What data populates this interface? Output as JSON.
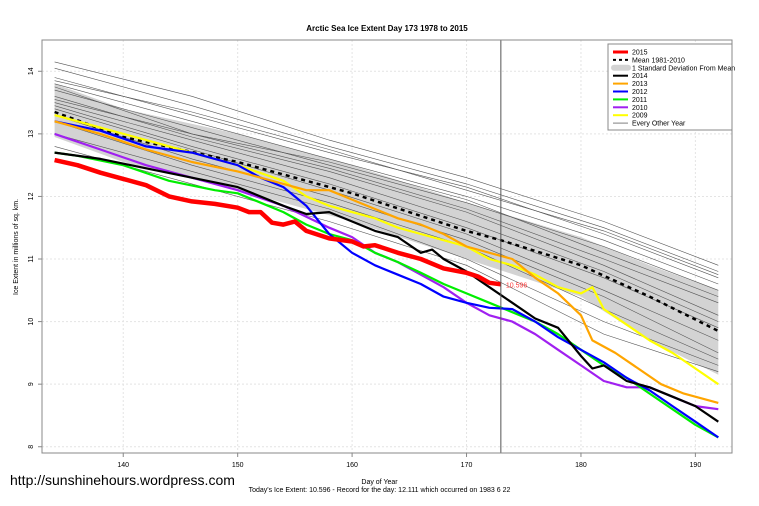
{
  "chart_data": {
    "type": "line",
    "title": "Arctic Sea Ice Extent Day 173 1978 to 2015",
    "xlabel": "Day of Year",
    "ylabel": "Ice Extent in millions of sq. km.",
    "subtitle": "Today's Ice Extent: 10.596  - Record for the day: 12.111 which occurred on 1983 6 22",
    "xlim": [
      132.9,
      193.2
    ],
    "ylim": [
      7.9,
      14.5
    ],
    "xticks": [
      140,
      150,
      160,
      170,
      180,
      190
    ],
    "yticks": [
      8,
      9,
      10,
      11,
      12,
      13,
      14
    ],
    "grid": true,
    "vline_day": 173,
    "current_label": "10.596",
    "legend_position": "top-right",
    "legend": [
      {
        "label": "2015",
        "color": "#ff0000",
        "style": "thick"
      },
      {
        "label": "Mean 1981-2010",
        "color": "#000000",
        "style": "dashed"
      },
      {
        "label": "1 Standard Deviation From Mean",
        "color": "#d3d3d3",
        "style": "band"
      },
      {
        "label": "2014",
        "color": "#000000",
        "style": "solid"
      },
      {
        "label": "2013",
        "color": "#ffa500",
        "style": "solid"
      },
      {
        "label": "2012",
        "color": "#0000ff",
        "style": "solid"
      },
      {
        "label": "2011",
        "color": "#00ee00",
        "style": "solid"
      },
      {
        "label": "2010",
        "color": "#a020f0",
        "style": "solid"
      },
      {
        "label": "2009",
        "color": "#ffff00",
        "style": "solid"
      },
      {
        "label": "Every Other Year",
        "color": "#808080",
        "style": "thin"
      }
    ],
    "mean": {
      "x": [
        134,
        140,
        150,
        160,
        170,
        173,
        180,
        186,
        192
      ],
      "y": [
        13.35,
        12.95,
        12.55,
        12.05,
        11.45,
        11.3,
        10.9,
        10.4,
        9.85
      ]
    },
    "sd_band": {
      "x": [
        134,
        140,
        150,
        160,
        170,
        180,
        186,
        192
      ],
      "upper": [
        13.8,
        13.4,
        13.0,
        12.5,
        11.9,
        11.35,
        10.9,
        10.5
      ],
      "lower": [
        12.95,
        12.55,
        12.1,
        11.6,
        11.0,
        10.4,
        9.7,
        9.15
      ]
    },
    "other_years": [
      {
        "x": [
          134,
          146,
          158,
          170,
          182,
          192
        ],
        "y": [
          14.15,
          13.6,
          12.9,
          12.3,
          11.6,
          10.9
        ]
      },
      {
        "x": [
          134,
          146,
          158,
          170,
          182,
          192
        ],
        "y": [
          14.05,
          13.45,
          12.8,
          12.2,
          11.5,
          10.8
        ]
      },
      {
        "x": [
          134,
          146,
          158,
          170,
          182,
          192
        ],
        "y": [
          13.9,
          13.3,
          12.7,
          12.15,
          11.4,
          10.7
        ]
      },
      {
        "x": [
          134,
          146,
          158,
          170,
          182,
          192
        ],
        "y": [
          13.8,
          13.2,
          12.6,
          12.0,
          11.3,
          10.6
        ]
      },
      {
        "x": [
          134,
          146,
          158,
          170,
          182,
          192
        ],
        "y": [
          13.7,
          13.1,
          12.5,
          11.9,
          11.2,
          10.5
        ]
      },
      {
        "x": [
          134,
          146,
          158,
          170,
          182,
          192
        ],
        "y": [
          13.75,
          13.0,
          12.45,
          11.8,
          11.0,
          10.3
        ]
      },
      {
        "x": [
          134,
          146,
          158,
          170,
          182,
          192
        ],
        "y": [
          13.6,
          12.95,
          12.4,
          11.75,
          10.9,
          10.1
        ]
      },
      {
        "x": [
          134,
          146,
          158,
          170,
          182,
          192
        ],
        "y": [
          13.5,
          12.9,
          12.3,
          11.6,
          10.8,
          10.0
        ]
      },
      {
        "x": [
          134,
          146,
          158,
          170,
          182,
          192
        ],
        "y": [
          13.45,
          12.8,
          12.2,
          11.5,
          10.7,
          9.9
        ]
      },
      {
        "x": [
          134,
          146,
          158,
          170,
          182,
          192
        ],
        "y": [
          13.4,
          12.75,
          12.1,
          11.4,
          10.5,
          9.7
        ]
      },
      {
        "x": [
          134,
          146,
          158,
          170,
          182,
          192
        ],
        "y": [
          13.3,
          12.6,
          12.0,
          11.3,
          10.4,
          9.5
        ]
      },
      {
        "x": [
          134,
          146,
          158,
          170,
          182,
          192
        ],
        "y": [
          13.2,
          12.5,
          11.9,
          11.2,
          10.2,
          9.4
        ]
      },
      {
        "x": [
          134,
          146,
          158,
          170,
          182,
          192
        ],
        "y": [
          13.0,
          12.4,
          11.8,
          11.0,
          10.0,
          9.3
        ]
      },
      {
        "x": [
          134,
          146,
          158,
          170,
          182,
          192
        ],
        "y": [
          12.8,
          12.2,
          11.6,
          10.9,
          9.8,
          9.2
        ]
      },
      {
        "x": [
          134,
          146,
          158,
          170,
          182,
          192
        ],
        "y": [
          13.85,
          13.35,
          12.75,
          12.1,
          11.45,
          10.75
        ]
      },
      {
        "x": [
          134,
          146,
          158,
          170,
          182,
          192
        ],
        "y": [
          13.55,
          13.0,
          12.55,
          11.95,
          11.1,
          10.4
        ]
      }
    ],
    "series": [
      {
        "name": "2009",
        "color": "#ffff00",
        "width": 2.2,
        "x": [
          134,
          138,
          142,
          146,
          150,
          154,
          156,
          158,
          160,
          162,
          164,
          166,
          168,
          170,
          172,
          174,
          176,
          178,
          180,
          181,
          182,
          184,
          186,
          188,
          190,
          192
        ],
        "y": [
          13.3,
          13.1,
          12.9,
          12.7,
          12.5,
          12.25,
          12.0,
          11.85,
          11.75,
          11.65,
          11.5,
          11.4,
          11.3,
          11.2,
          11.0,
          10.9,
          10.75,
          10.55,
          10.45,
          10.55,
          10.2,
          9.95,
          9.7,
          9.5,
          9.25,
          9.0
        ]
      },
      {
        "name": "2010",
        "color": "#a020f0",
        "width": 2.2,
        "x": [
          134,
          138,
          142,
          146,
          150,
          154,
          158,
          160,
          162,
          164,
          166,
          168,
          170,
          172,
          174,
          176,
          178,
          180,
          182,
          184,
          186,
          188,
          190,
          192
        ],
        "y": [
          13.0,
          12.75,
          12.5,
          12.3,
          12.1,
          11.85,
          11.5,
          11.35,
          11.1,
          10.95,
          10.75,
          10.55,
          10.3,
          10.1,
          10.0,
          9.8,
          9.55,
          9.3,
          9.05,
          8.95,
          8.95,
          8.8,
          8.65,
          8.6
        ]
      },
      {
        "name": "2011",
        "color": "#00ee00",
        "width": 2.2,
        "x": [
          134,
          136,
          140,
          144,
          148,
          150,
          152,
          154,
          156,
          158,
          160,
          162,
          164,
          166,
          168,
          170,
          172,
          174,
          176,
          178,
          180,
          182,
          184,
          186,
          188,
          190,
          192
        ],
        "y": [
          12.7,
          12.65,
          12.5,
          12.25,
          12.1,
          12.05,
          11.9,
          11.75,
          11.55,
          11.4,
          11.3,
          11.1,
          10.95,
          10.78,
          10.6,
          10.45,
          10.3,
          10.15,
          10.0,
          9.8,
          9.55,
          9.3,
          9.1,
          8.85,
          8.6,
          8.35,
          8.15
        ]
      },
      {
        "name": "2012",
        "color": "#0000ff",
        "width": 2.2,
        "x": [
          134,
          138,
          142,
          146,
          148,
          150,
          152,
          154,
          156,
          158,
          160,
          162,
          164,
          166,
          168,
          170,
          172,
          174,
          176,
          178,
          180,
          182,
          184,
          186,
          188,
          190,
          192
        ],
        "y": [
          13.2,
          13.05,
          12.8,
          12.7,
          12.6,
          12.5,
          12.3,
          12.15,
          11.85,
          11.4,
          11.1,
          10.9,
          10.75,
          10.6,
          10.4,
          10.3,
          10.22,
          10.2,
          10.0,
          9.75,
          9.55,
          9.35,
          9.1,
          8.9,
          8.65,
          8.4,
          8.15
        ]
      },
      {
        "name": "2013",
        "color": "#ffa500",
        "width": 2.2,
        "x": [
          134,
          138,
          142,
          146,
          150,
          154,
          156,
          158,
          160,
          162,
          164,
          166,
          168,
          170,
          172,
          174,
          176,
          178,
          180,
          181,
          183,
          185,
          187,
          189,
          192
        ],
        "y": [
          13.2,
          13.0,
          12.75,
          12.55,
          12.4,
          12.2,
          12.1,
          12.1,
          11.95,
          11.8,
          11.65,
          11.55,
          11.4,
          11.2,
          11.1,
          11.0,
          10.7,
          10.45,
          10.1,
          9.7,
          9.5,
          9.25,
          9.0,
          8.85,
          8.7
        ]
      },
      {
        "name": "2014",
        "color": "#000000",
        "width": 2.2,
        "x": [
          134,
          138,
          142,
          146,
          150,
          154,
          156,
          158,
          160,
          162,
          164,
          166,
          167,
          168,
          170,
          172,
          174,
          176,
          178,
          180,
          181,
          182,
          184,
          186,
          188,
          190,
          192
        ],
        "y": [
          12.7,
          12.6,
          12.45,
          12.3,
          12.15,
          11.85,
          11.72,
          11.75,
          11.6,
          11.45,
          11.35,
          11.1,
          11.15,
          11.0,
          10.8,
          10.55,
          10.3,
          10.05,
          9.9,
          9.45,
          9.25,
          9.3,
          9.05,
          8.95,
          8.8,
          8.65,
          8.4
        ]
      },
      {
        "name": "2015",
        "color": "#ff0000",
        "width": 4.5,
        "x": [
          134,
          136,
          138,
          140,
          142,
          144,
          146,
          148,
          150,
          151,
          152,
          153,
          154,
          155,
          156,
          158,
          160,
          161,
          162,
          164,
          166,
          168,
          170,
          171,
          172,
          173
        ],
        "y": [
          12.58,
          12.5,
          12.38,
          12.28,
          12.18,
          12.0,
          11.92,
          11.88,
          11.82,
          11.75,
          11.75,
          11.58,
          11.55,
          11.6,
          11.45,
          11.33,
          11.28,
          11.2,
          11.22,
          11.1,
          11.0,
          10.85,
          10.78,
          10.72,
          10.62,
          10.596
        ]
      }
    ]
  },
  "watermark": "http://sunshinehours.wordpress.com"
}
